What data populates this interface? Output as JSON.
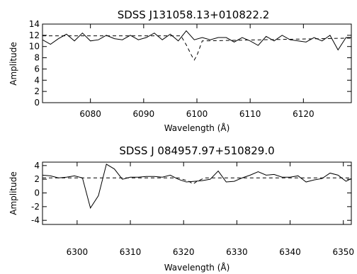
{
  "chart_data": [
    {
      "type": "line",
      "title": "SDSS J131058.13+010822.2",
      "xlabel": "Wavelength (Å)",
      "ylabel": "Amplitude",
      "xlim": [
        6071,
        6129
      ],
      "ylim": [
        0,
        14
      ],
      "xticks": [
        6080,
        6090,
        6100,
        6110,
        6120
      ],
      "yticks": [
        0,
        2,
        4,
        6,
        8,
        10,
        12,
        14
      ],
      "grid": false,
      "series": [
        {
          "style": "solid",
          "x": [
            6071,
            6072.5,
            6074,
            6075.5,
            6077,
            6078.5,
            6080,
            6081.5,
            6083,
            6084.5,
            6086,
            6087.5,
            6089,
            6090.5,
            6092,
            6093.5,
            6095,
            6096.5,
            6098,
            6099.5,
            6101,
            6102.5,
            6104,
            6105.5,
            6107,
            6108.5,
            6110,
            6111.5,
            6113,
            6114.5,
            6116,
            6117.5,
            6119,
            6120.5,
            6122,
            6123.5,
            6125,
            6126.5,
            6128,
            6129
          ],
          "y": [
            11.2,
            10.4,
            11.4,
            12.2,
            11.0,
            12.4,
            11.0,
            11.2,
            12.0,
            11.4,
            11.2,
            12.0,
            11.2,
            11.6,
            12.4,
            11.2,
            12.2,
            11.0,
            12.8,
            11.2,
            11.6,
            11.2,
            11.6,
            11.6,
            10.8,
            11.6,
            11.0,
            10.2,
            11.8,
            11.0,
            12.0,
            11.2,
            11.0,
            10.8,
            11.6,
            11.0,
            12.0,
            9.4,
            11.6,
            11.6
          ]
        },
        {
          "style": "dashed",
          "x": [
            6071,
            6097,
            6098,
            6099,
            6099.5,
            6100,
            6101,
            6129
          ],
          "y": [
            11.9,
            11.9,
            10.3,
            8.4,
            7.6,
            8.4,
            11.0,
            11.5
          ]
        }
      ]
    },
    {
      "type": "line",
      "title": "SDSS J 084957.97+510829.0",
      "xlabel": "Wavelength (Å)",
      "ylabel": "Amplitude",
      "xlim": [
        6293.5,
        6351.5
      ],
      "ylim": [
        -4.6,
        4.5
      ],
      "xticks": [
        6300,
        6310,
        6320,
        6330,
        6340,
        6350
      ],
      "yticks": [
        -4,
        -2,
        0,
        2,
        4
      ],
      "grid": false,
      "series": [
        {
          "style": "solid",
          "x": [
            6293.5,
            6295,
            6296.5,
            6298,
            6299.5,
            6301,
            6302.5,
            6304,
            6305.5,
            6307,
            6308.5,
            6310,
            6311.5,
            6313,
            6314.5,
            6316,
            6317.5,
            6319,
            6320.5,
            6322,
            6323.5,
            6325,
            6326.5,
            6328,
            6329.5,
            6331,
            6332.5,
            6334,
            6335.5,
            6337,
            6338.5,
            6340,
            6341.5,
            6343,
            6344.5,
            6346,
            6347.5,
            6349,
            6350.5,
            6351.5
          ],
          "y": [
            2.6,
            2.5,
            2.2,
            2.3,
            2.5,
            2.2,
            -2.2,
            -0.4,
            4.2,
            3.5,
            2.0,
            2.3,
            2.3,
            2.4,
            2.4,
            2.3,
            2.6,
            2.0,
            1.6,
            1.7,
            1.8,
            2.0,
            3.2,
            1.6,
            1.7,
            2.2,
            2.6,
            3.1,
            2.6,
            2.7,
            2.3,
            2.3,
            2.5,
            1.6,
            1.9,
            2.1,
            2.9,
            2.6,
            1.7,
            2.1
          ]
        },
        {
          "style": "dashed",
          "x": [
            6293.5,
            6319,
            6321,
            6321.8,
            6322.5,
            6324,
            6351.5
          ],
          "y": [
            2.2,
            2.2,
            1.7,
            1.3,
            1.7,
            2.2,
            2.2
          ]
        }
      ]
    }
  ]
}
